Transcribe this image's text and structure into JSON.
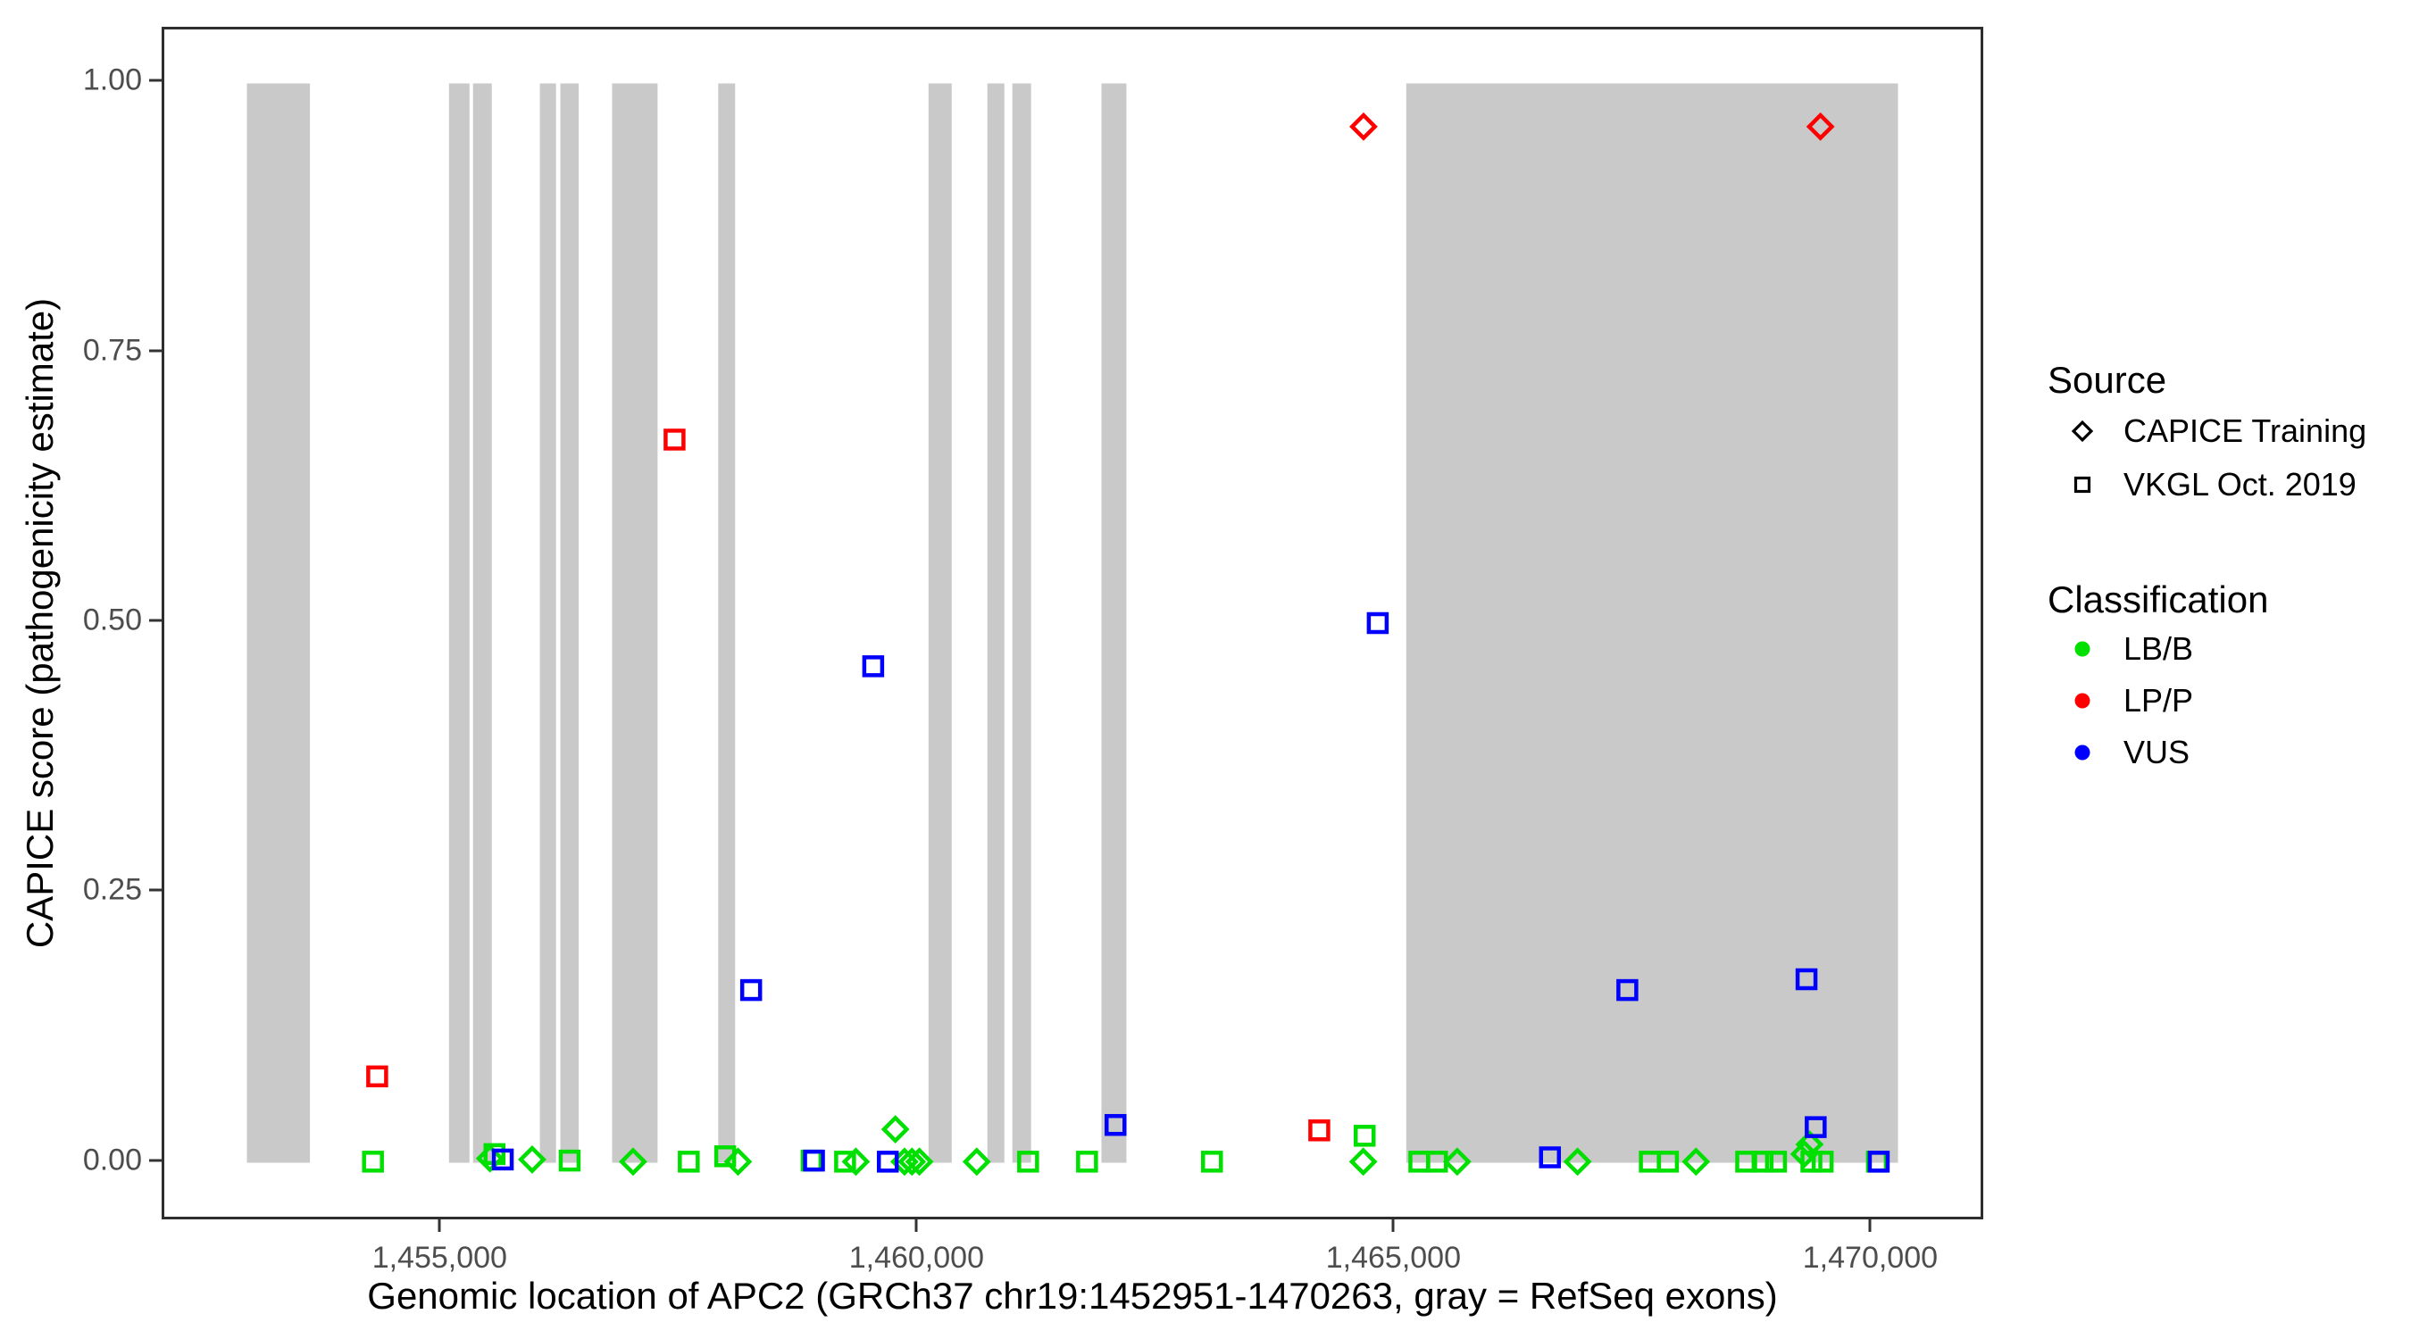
{
  "figure": {
    "background": "#ffffff",
    "panel_border_color": "#2e2e2e",
    "tick_color": "#333333",
    "tick_label_color": "#4d4d4d"
  },
  "chart_data": {
    "type": "scatter",
    "title": "",
    "xlabel": "Genomic location of APC2 (GRCh37 chr19:1452951-1470263, gray = RefSeq exons)",
    "ylabel": "CAPICE score (pathogenicity estimate)",
    "xlim": [
      1452085,
      1471129
    ],
    "ylim": [
      -0.05,
      1.05
    ],
    "grid": "off",
    "x_ticks": [
      {
        "value": 1455000,
        "label": "1,455,000"
      },
      {
        "value": 1460000,
        "label": "1,460,000"
      },
      {
        "value": 1465000,
        "label": "1,465,000"
      },
      {
        "value": 1470000,
        "label": "1,470,000"
      }
    ],
    "y_ticks": [
      {
        "value": 0.0,
        "label": "0.00"
      },
      {
        "value": 0.25,
        "label": "0.25"
      },
      {
        "value": 0.5,
        "label": "0.50"
      },
      {
        "value": 0.75,
        "label": "0.75"
      },
      {
        "value": 1.0,
        "label": "1.00"
      }
    ],
    "exon_color": "#c9c9c9",
    "exons_bp": [
      [
        1452951,
        1453612
      ],
      [
        1455070,
        1455285
      ],
      [
        1455322,
        1455519
      ],
      [
        1456023,
        1456192
      ],
      [
        1456238,
        1456430
      ],
      [
        1456780,
        1457257
      ],
      [
        1457893,
        1458070
      ],
      [
        1460098,
        1460341
      ],
      [
        1460715,
        1460893
      ],
      [
        1460977,
        1461173
      ],
      [
        1461911,
        1462173
      ],
      [
        1465107,
        1470263
      ]
    ],
    "class_colors": {
      "LB/B": "#00e000",
      "LP/P": "#ff0000",
      "VUS": "#0000ff"
    },
    "shape_by_source": {
      "CAPICE Training": "diamond",
      "VKGL Oct. 2019": "square"
    },
    "points": [
      {
        "x": 1454273,
        "y": 0.001,
        "source": "VKGL Oct. 2019",
        "class": "LB/B"
      },
      {
        "x": 1455547,
        "y": 0.008,
        "source": "VKGL Oct. 2019",
        "class": "LB/B"
      },
      {
        "x": 1456335,
        "y": 0.002,
        "source": "VKGL Oct. 2019",
        "class": "LB/B"
      },
      {
        "x": 1457584,
        "y": 0.001,
        "source": "VKGL Oct. 2019",
        "class": "LB/B"
      },
      {
        "x": 1457966,
        "y": 0.006,
        "source": "VKGL Oct. 2019",
        "class": "LB/B"
      },
      {
        "x": 1458872,
        "y": 0.002,
        "source": "VKGL Oct. 2019",
        "class": "LB/B"
      },
      {
        "x": 1459223,
        "y": 0.001,
        "source": "VKGL Oct. 2019",
        "class": "LB/B"
      },
      {
        "x": 1461142,
        "y": 0.001,
        "source": "VKGL Oct. 2019",
        "class": "LB/B"
      },
      {
        "x": 1461760,
        "y": 0.001,
        "source": "VKGL Oct. 2019",
        "class": "LB/B"
      },
      {
        "x": 1463070,
        "y": 0.001,
        "source": "VKGL Oct. 2019",
        "class": "LB/B"
      },
      {
        "x": 1464671,
        "y": 0.025,
        "source": "VKGL Oct. 2019",
        "class": "LB/B"
      },
      {
        "x": 1465244,
        "y": 0.001,
        "source": "VKGL Oct. 2019",
        "class": "LB/B"
      },
      {
        "x": 1465429,
        "y": 0.001,
        "source": "VKGL Oct. 2019",
        "class": "LB/B"
      },
      {
        "x": 1467661,
        "y": 0.001,
        "source": "VKGL Oct. 2019",
        "class": "LB/B"
      },
      {
        "x": 1467851,
        "y": 0.001,
        "source": "VKGL Oct. 2019",
        "class": "LB/B"
      },
      {
        "x": 1468671,
        "y": 0.001,
        "source": "VKGL Oct. 2019",
        "class": "LB/B"
      },
      {
        "x": 1468843,
        "y": 0.001,
        "source": "VKGL Oct. 2019",
        "class": "LB/B"
      },
      {
        "x": 1468984,
        "y": 0.001,
        "source": "VKGL Oct. 2019",
        "class": "LB/B"
      },
      {
        "x": 1469355,
        "y": 0.001,
        "source": "VKGL Oct. 2019",
        "class": "LB/B"
      },
      {
        "x": 1469473,
        "y": 0.001,
        "source": "VKGL Oct. 2019",
        "class": "LB/B"
      },
      {
        "x": 1470042,
        "y": 0.001,
        "source": "VKGL Oct. 2019",
        "class": "LB/B"
      },
      {
        "x": 1455500,
        "y": 0.004,
        "source": "CAPICE Training",
        "class": "LB/B"
      },
      {
        "x": 1455942,
        "y": 0.003,
        "source": "CAPICE Training",
        "class": "LB/B"
      },
      {
        "x": 1457000,
        "y": 0.001,
        "source": "CAPICE Training",
        "class": "LB/B"
      },
      {
        "x": 1458100,
        "y": 0.001,
        "source": "CAPICE Training",
        "class": "LB/B"
      },
      {
        "x": 1459336,
        "y": 0.001,
        "source": "CAPICE Training",
        "class": "LB/B"
      },
      {
        "x": 1459750,
        "y": 0.031,
        "source": "CAPICE Training",
        "class": "LB/B"
      },
      {
        "x": 1459846,
        "y": 0.001,
        "source": "CAPICE Training",
        "class": "LB/B"
      },
      {
        "x": 1459924,
        "y": 0.001,
        "source": "CAPICE Training",
        "class": "LB/B"
      },
      {
        "x": 1460002,
        "y": 0.001,
        "source": "CAPICE Training",
        "class": "LB/B"
      },
      {
        "x": 1460603,
        "y": 0.001,
        "source": "CAPICE Training",
        "class": "LB/B"
      },
      {
        "x": 1464656,
        "y": 0.001,
        "source": "CAPICE Training",
        "class": "LB/B"
      },
      {
        "x": 1465641,
        "y": 0.001,
        "source": "CAPICE Training",
        "class": "LB/B"
      },
      {
        "x": 1466903,
        "y": 0.001,
        "source": "CAPICE Training",
        "class": "LB/B"
      },
      {
        "x": 1468145,
        "y": 0.001,
        "source": "CAPICE Training",
        "class": "LB/B"
      },
      {
        "x": 1469281,
        "y": 0.008,
        "source": "CAPICE Training",
        "class": "LB/B"
      },
      {
        "x": 1469336,
        "y": 0.017,
        "source": "CAPICE Training",
        "class": "LB/B"
      },
      {
        "x": 1455634,
        "y": 0.003,
        "source": "VKGL Oct. 2019",
        "class": "VUS"
      },
      {
        "x": 1458238,
        "y": 0.16,
        "source": "VKGL Oct. 2019",
        "class": "VUS"
      },
      {
        "x": 1458897,
        "y": 0.002,
        "source": "VKGL Oct. 2019",
        "class": "VUS"
      },
      {
        "x": 1459518,
        "y": 0.46,
        "source": "VKGL Oct. 2019",
        "class": "VUS"
      },
      {
        "x": 1459671,
        "y": 0.001,
        "source": "VKGL Oct. 2019",
        "class": "VUS"
      },
      {
        "x": 1462059,
        "y": 0.035,
        "source": "VKGL Oct. 2019",
        "class": "VUS"
      },
      {
        "x": 1464808,
        "y": 0.5,
        "source": "VKGL Oct. 2019",
        "class": "VUS"
      },
      {
        "x": 1466614,
        "y": 0.005,
        "source": "VKGL Oct. 2019",
        "class": "VUS"
      },
      {
        "x": 1467425,
        "y": 0.16,
        "source": "VKGL Oct. 2019",
        "class": "VUS"
      },
      {
        "x": 1469304,
        "y": 0.17,
        "source": "VKGL Oct. 2019",
        "class": "VUS"
      },
      {
        "x": 1469400,
        "y": 0.033,
        "source": "VKGL Oct. 2019",
        "class": "VUS"
      },
      {
        "x": 1470061,
        "y": 0.001,
        "source": "VKGL Oct. 2019",
        "class": "VUS"
      },
      {
        "x": 1454317,
        "y": 0.08,
        "source": "VKGL Oct. 2019",
        "class": "LP/P"
      },
      {
        "x": 1457435,
        "y": 0.67,
        "source": "VKGL Oct. 2019",
        "class": "LP/P"
      },
      {
        "x": 1464195,
        "y": 0.03,
        "source": "VKGL Oct. 2019",
        "class": "LP/P"
      },
      {
        "x": 1464659,
        "y": 0.96,
        "source": "CAPICE Training",
        "class": "LP/P"
      },
      {
        "x": 1469450,
        "y": 0.96,
        "source": "CAPICE Training",
        "class": "LP/P"
      }
    ]
  },
  "legend": {
    "source": {
      "title": "Source",
      "items": [
        {
          "label": "CAPICE Training",
          "glyph": "diamond-outline-icon",
          "color": "#000000"
        },
        {
          "label": "VKGL Oct. 2019",
          "glyph": "square-outline-icon",
          "color": "#000000"
        }
      ]
    },
    "classification": {
      "title": "Classification",
      "items": [
        {
          "label": "LB/B",
          "glyph": "dot-icon",
          "color": "#00e000"
        },
        {
          "label": "LP/P",
          "glyph": "dot-icon",
          "color": "#ff0000"
        },
        {
          "label": "VUS",
          "glyph": "dot-icon",
          "color": "#0000ff"
        }
      ]
    }
  }
}
